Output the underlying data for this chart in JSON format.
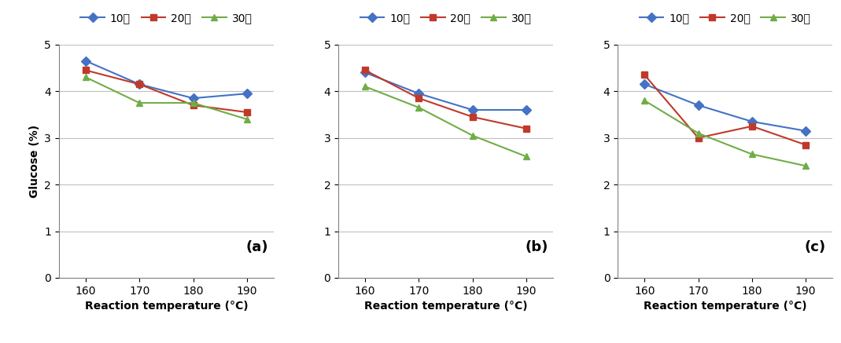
{
  "x": [
    160,
    170,
    180,
    190
  ],
  "panels": [
    {
      "label": "(a)",
      "series": {
        "10분": [
          4.65,
          4.15,
          3.85,
          3.95
        ],
        "20분": [
          4.45,
          4.15,
          3.7,
          3.55
        ],
        "30분": [
          4.3,
          3.75,
          3.75,
          3.4
        ]
      }
    },
    {
      "label": "(b)",
      "series": {
        "10분": [
          4.4,
          3.95,
          3.6,
          3.6
        ],
        "20분": [
          4.45,
          3.85,
          3.45,
          3.2
        ],
        "30분": [
          4.1,
          3.65,
          3.05,
          2.6
        ]
      }
    },
    {
      "label": "(c)",
      "series": {
        "10분": [
          4.15,
          3.7,
          3.35,
          3.15
        ],
        "20분": [
          4.35,
          3.0,
          3.25,
          2.85
        ],
        "30분": [
          3.8,
          3.1,
          2.65,
          2.4
        ]
      }
    }
  ],
  "series_styles": {
    "10분": {
      "color": "#4472C4",
      "marker": "D",
      "linestyle": "-"
    },
    "20분": {
      "color": "#C0392B",
      "marker": "s",
      "linestyle": "-"
    },
    "30분": {
      "color": "#70AD47",
      "marker": "^",
      "linestyle": "-"
    }
  },
  "ylim": [
    0,
    5
  ],
  "yticks": [
    0,
    1,
    2,
    3,
    4,
    5
  ],
  "xlabel": "Reaction temperature (°C)",
  "ylabel": "Glucose (%)",
  "legend_labels": [
    "10분",
    "20분",
    "30분"
  ],
  "background_color": "#ffffff",
  "grid_color": "#c0c0c0"
}
